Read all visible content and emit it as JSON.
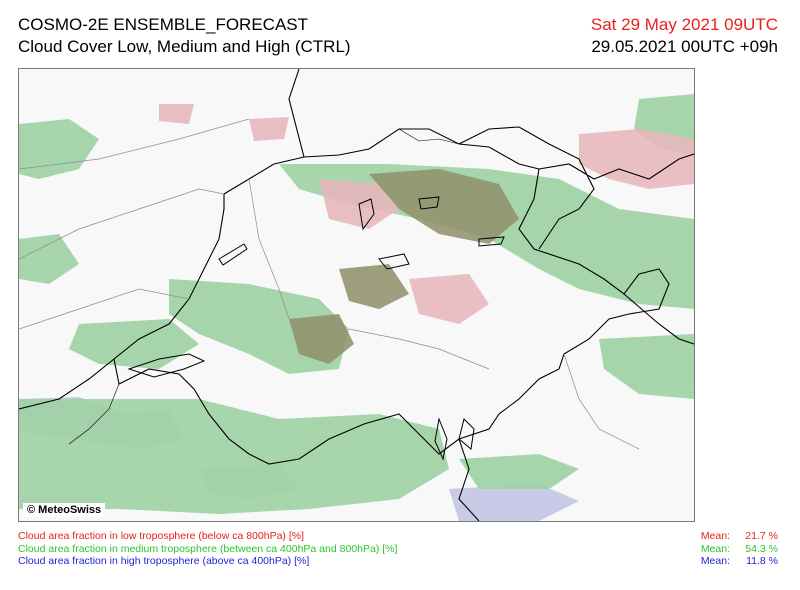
{
  "header": {
    "model": "COSMO-2E ENSEMBLE_FORECAST",
    "product": "Cloud Cover Low, Medium and High (CTRL)",
    "valid_time": "Sat 29 May 2021 09UTC",
    "run_time": "29.05.2021 00UTC +09h"
  },
  "map": {
    "copyright": "© MeteoSwiss",
    "colors": {
      "low_cloud": "#e7b8bd",
      "medium_cloud": "#9fd2a3",
      "high_cloud": "#b9bbe2",
      "low_medium_overlap": "#8f8f6a",
      "borders": "#000000",
      "background": "#f7f8f7"
    }
  },
  "legend": [
    {
      "label": "Cloud area fraction in low troposphere (below ca 800hPa) [%]",
      "mean_label": "Mean:",
      "mean": "21.7 %",
      "color": "#e8211d"
    },
    {
      "label": "Cloud area fraction in medium troposphere (between ca 400hPa and 800hPa) [%]",
      "mean_label": "Mean:",
      "mean": "54.3 %",
      "color": "#2ec32e"
    },
    {
      "label": "Cloud area fraction in high troposphere (above ca 400hPa) [%]",
      "mean_label": "Mean:",
      "mean": "11.8 %",
      "color": "#1f1fd6"
    }
  ]
}
